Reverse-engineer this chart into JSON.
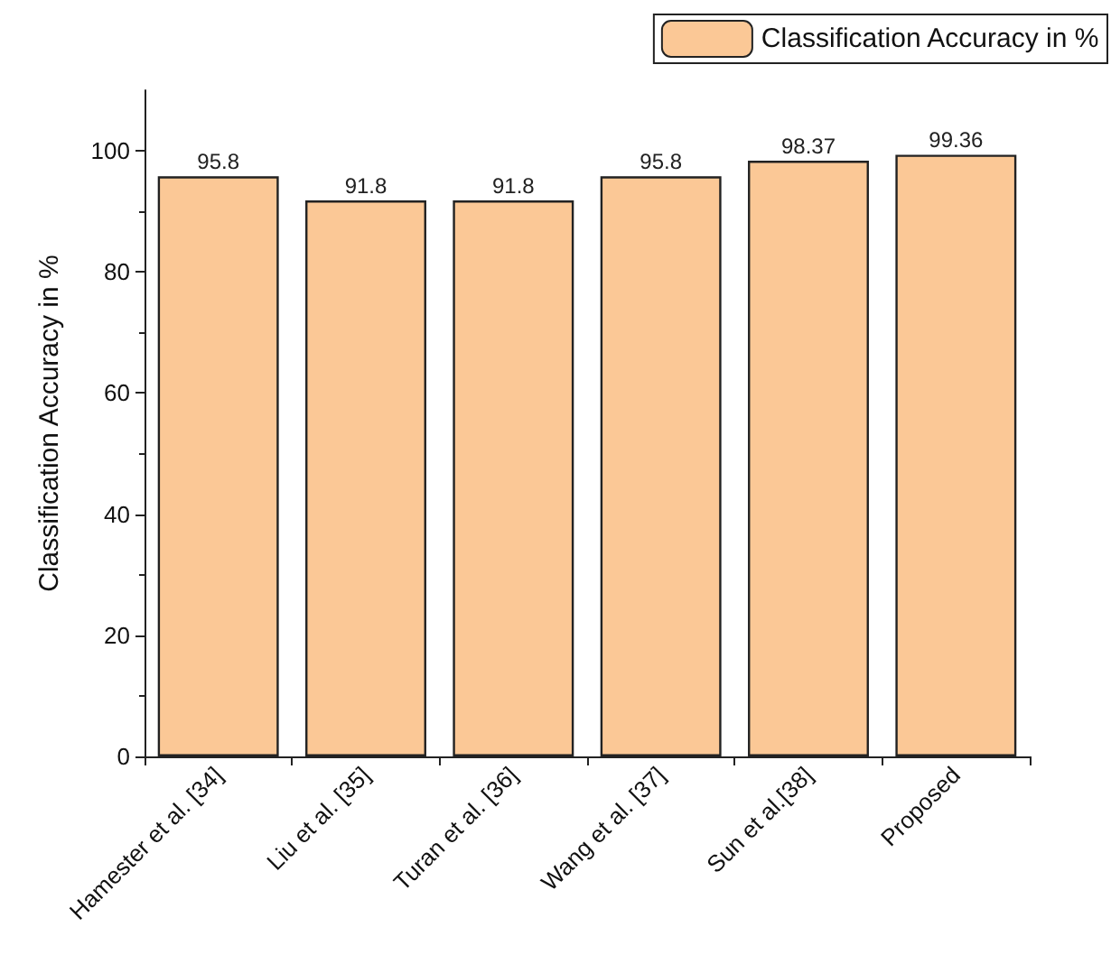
{
  "chart_data": {
    "type": "bar",
    "ylabel": "Classification Accuracy in %",
    "categories": [
      "Hamester et al. [34]",
      "Liu et al. [35]",
      "Turan et al. [36]",
      "Wang et al. [37]",
      "Sun et al.[38]",
      "Proposed"
    ],
    "series": [
      {
        "name": "Classification Accuracy in %",
        "color": "#fbc896",
        "values": [
          95.8,
          91.8,
          91.8,
          95.8,
          98.37,
          99.36
        ]
      }
    ],
    "ylim": [
      0,
      110
    ],
    "yticks": [
      0,
      20,
      40,
      60,
      80,
      100
    ],
    "data_labels": true,
    "legend": "top right",
    "grid": false
  }
}
